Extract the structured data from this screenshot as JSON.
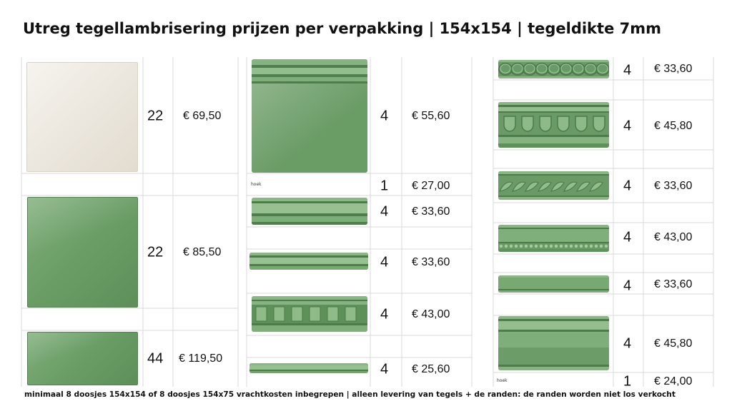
{
  "title": "Utreg tegellambrisering prijzen per verpakking | 154x154 | tegeldikte 7mm",
  "footer": "minimaal 8 doosjes 154x154 of 8 doosjes 154x75 vrachtkosten inbegrepen | alleen levering van tegels + de randen: de randen worden niet los verkocht",
  "colors": {
    "cream_tile": "#ece7de",
    "green_tile": "#6d9e69",
    "grid_line": "#d9d9d9"
  },
  "col1": [
    {
      "product": "cream-tile-154x154",
      "qty": "22",
      "price": "€ 69,50"
    },
    {
      "product": "green-tile-154x154",
      "qty": "22",
      "price": "€ 85,50"
    },
    {
      "product": "green-tile-154x75",
      "qty": "44",
      "price": "€ 119,50"
    }
  ],
  "col2": [
    {
      "product": "green-skirting-tile",
      "qty": "4",
      "price": "€ 55,60"
    },
    {
      "product": "skirting-corner",
      "note": "hoek",
      "qty": "1",
      "price": "€ 27,00"
    },
    {
      "product": "torus-trim",
      "qty": "4",
      "price": "€ 33,60"
    },
    {
      "product": "slim-bead-trim",
      "qty": "4",
      "price": "€ 33,60"
    },
    {
      "product": "dentil-trim",
      "qty": "4",
      "price": "€ 43,00"
    },
    {
      "product": "pencil-trim",
      "qty": "4",
      "price": "€ 25,60"
    }
  ],
  "col3": [
    {
      "product": "rope-chain-trim",
      "qty": "4",
      "price": "€ 33,60"
    },
    {
      "product": "egg-and-dart-trim",
      "qty": "4",
      "price": "€ 45,80"
    },
    {
      "product": "twisted-rope-trim",
      "qty": "4",
      "price": "€ 33,60"
    },
    {
      "product": "bead-dot-trim",
      "qty": "4",
      "price": "€ 43,00"
    },
    {
      "product": "plain-flat-trim",
      "qty": "4",
      "price": "€ 33,60"
    },
    {
      "product": "cornice-trim",
      "qty": "4",
      "price": "€ 45,80"
    },
    {
      "product": "cornice-corner",
      "note": "hoek",
      "qty": "1",
      "price": "€ 24,00"
    }
  ]
}
